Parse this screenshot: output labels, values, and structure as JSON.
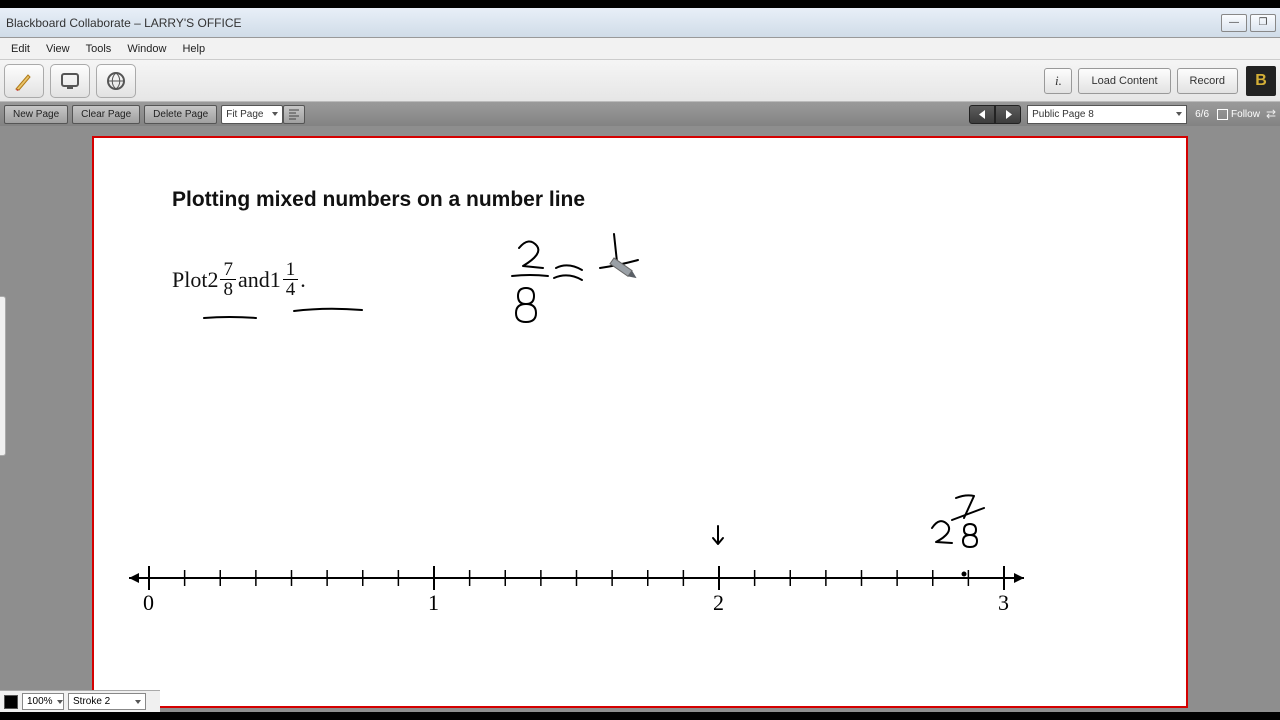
{
  "window": {
    "title": "Blackboard Collaborate – LARRY'S OFFICE"
  },
  "menu": {
    "items": [
      "Edit",
      "View",
      "Tools",
      "Window",
      "Help"
    ]
  },
  "toolbar": {
    "load_content_label": "Load Content",
    "record_label": "Record",
    "logo_text": "B"
  },
  "pagebar": {
    "new_page": "New Page",
    "clear_page": "Clear Page",
    "delete_page": "Delete Page",
    "zoom": "Fit Page",
    "page_selector": "Public Page 8",
    "page_counter": "6/6",
    "follow_label": "Follow"
  },
  "whiteboard": {
    "title": "Plotting mixed numbers on a number line",
    "plot_word": "Plot ",
    "whole1": "2",
    "frac1_num": "7",
    "frac1_den": "8",
    "and_word": " and ",
    "whole2": "1",
    "frac2_num": "1",
    "frac2_den": "4",
    "period": ".",
    "numberline": {
      "start": 0,
      "end": 3,
      "subdivisions": 8,
      "labels": [
        "0",
        "1",
        "2",
        "3"
      ]
    }
  },
  "statusbar": {
    "zoom_pct": "100%",
    "stroke": "Stroke 2"
  },
  "colors": {
    "border_red": "#d40000",
    "bg_gray": "#8e8e8e"
  }
}
